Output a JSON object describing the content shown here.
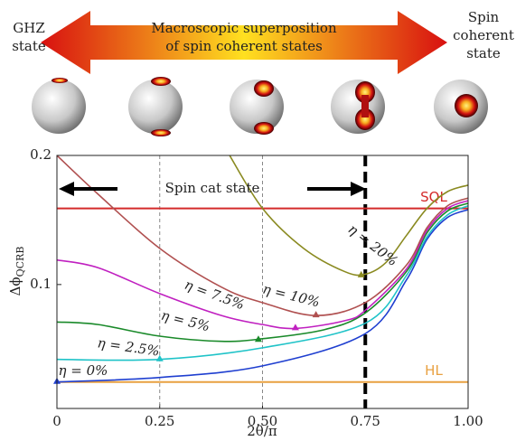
{
  "chart_data": {
    "type": "line",
    "left_label": [
      "GHZ",
      "state"
    ],
    "arrow_label": [
      "Macroscopic superposition",
      "of spin coherent states"
    ],
    "right_label": [
      "Spin",
      "coherent",
      "state"
    ],
    "region_label": "Spin cat state",
    "xlabel": "2θ/π",
    "ylabel": "Δϕ",
    "ylabel_sub": "QCRB",
    "xlim": [
      0,
      1
    ],
    "ylim": [
      0.004,
      0.2
    ],
    "xticks": [
      0,
      0.25,
      {
        "value": 0.5,
        "label": "0.50"
      },
      0.75,
      {
        "value": 1,
        "label": "1.00"
      }
    ],
    "yticks": [
      0.1,
      0.2
    ],
    "vlines": [
      {
        "x": 0.25,
        "style": "thin"
      },
      {
        "x": 0.5,
        "style": "thin"
      },
      {
        "x": 0.75,
        "style": "thick"
      }
    ],
    "reference_lines": [
      {
        "name": "SQL",
        "value": 0.159,
        "color": "#d42a2a"
      },
      {
        "name": "HL",
        "value": 0.0245,
        "color": "#e8a040"
      }
    ],
    "series": [
      {
        "name": "η = 0%",
        "color": "#1f3fd0",
        "x": [
          0,
          0.25,
          0.5,
          0.75,
          0.85,
          0.9,
          0.95,
          1
        ],
        "values": [
          0.0245,
          0.028,
          0.037,
          0.062,
          0.1035,
          0.135,
          0.152,
          0.158
        ],
        "min_x": 0,
        "min_value": 0.0245
      },
      {
        "name": "η = 2.5%",
        "color": "#1fc3c8",
        "x": [
          0,
          0.25,
          0.5,
          0.75,
          0.85,
          0.9,
          0.95,
          1
        ],
        "values": [
          0.042,
          0.042,
          0.051,
          0.07,
          0.107,
          0.137,
          0.154,
          0.161
        ],
        "min_x": 0.25,
        "min_value": 0.042
      },
      {
        "name": "η = 5%",
        "color": "#1a8a2a",
        "x": [
          0,
          0.1,
          0.25,
          0.4,
          0.5,
          0.65,
          0.75,
          0.85,
          0.9,
          0.95,
          1
        ],
        "values": [
          0.071,
          0.069,
          0.06,
          0.056,
          0.058,
          0.065,
          0.078,
          0.11,
          0.14,
          0.157,
          0.163
        ],
        "min_x": 0.49,
        "min_value": 0.057
      },
      {
        "name": "η = 7.5%",
        "color": "#c020c0",
        "x": [
          0,
          0.1,
          0.25,
          0.4,
          0.5,
          0.58,
          0.7,
          0.75,
          0.85,
          0.9,
          0.95,
          1
        ],
        "values": [
          0.119,
          0.113,
          0.093,
          0.076,
          0.069,
          0.066,
          0.072,
          0.08,
          0.112,
          0.142,
          0.159,
          0.165
        ],
        "min_x": 0.58,
        "min_value": 0.066
      },
      {
        "name": "η = 10%",
        "color": "#b05050",
        "x": [
          0,
          0.1,
          0.25,
          0.4,
          0.5,
          0.63,
          0.75,
          0.85,
          0.9,
          0.95,
          1
        ],
        "values": [
          0.2,
          0.17,
          0.128,
          0.098,
          0.086,
          0.076,
          0.086,
          0.115,
          0.144,
          0.161,
          0.167
        ],
        "min_x": 0.63,
        "min_value": 0.076
      },
      {
        "name": "η = 20%",
        "color": "#8a8a20",
        "x": [
          0.42,
          0.5,
          0.6,
          0.7,
          0.75,
          0.8,
          0.85,
          0.9,
          0.95,
          1
        ],
        "values": [
          0.2,
          0.159,
          0.128,
          0.11,
          0.108,
          0.117,
          0.138,
          0.159,
          0.172,
          0.177
        ],
        "min_x": 0.74,
        "min_value": 0.107
      }
    ]
  }
}
